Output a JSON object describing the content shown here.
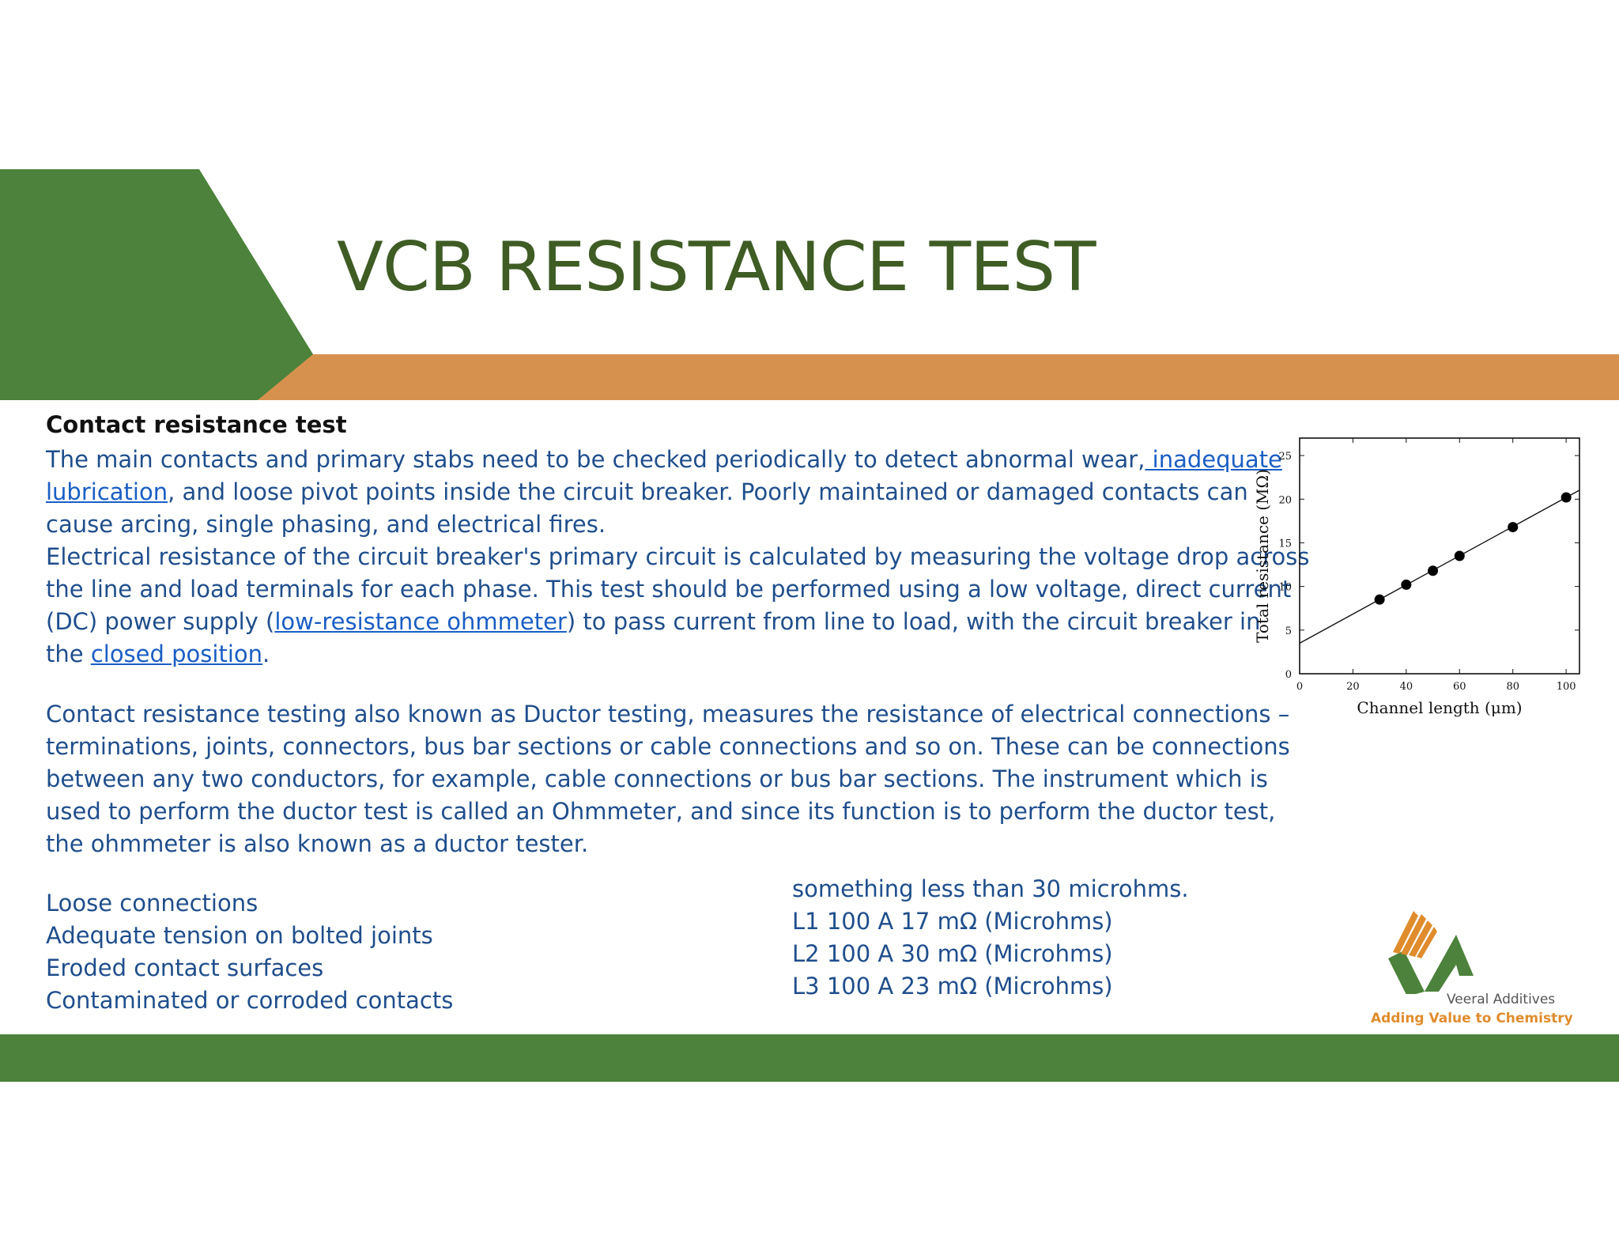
{
  "slide": {
    "title": "VCB RESISTANCE TEST"
  },
  "section1": {
    "heading": "Contact resistance test",
    "lines": [
      [
        "The main contacts and primary stabs need to be checked periodically to detect abnormal wear,",
        " inadequate"
      ],
      [
        "lubrication",
        ", and loose pivot points inside the circuit breaker. Poorly maintained or damaged contacts can"
      ],
      [
        "cause arcing, single phasing, and electrical fires."
      ],
      [
        "Electrical resistance of the circuit breaker's primary circuit is calculated by measuring the voltage drop across"
      ],
      [
        "the line and load terminals for each phase. This test should be performed using a low voltage, direct current"
      ],
      [
        "(DC) power supply (",
        "low-resistance ohmmeter",
        ") to pass current from line to load, with the circuit breaker in"
      ],
      [
        "the ",
        "closed position",
        "."
      ]
    ]
  },
  "section2": {
    "lines": [
      "Contact resistance testing also known as Ductor testing, measures the resistance of electrical connections –",
      "terminations, joints, connectors, bus bar sections or cable connections and so on. These can be connections",
      "between any two conductors, for example, cable connections or bus bar sections. The instrument which is",
      "used to perform the ductor test is called an Ohmmeter, and since its function is to perform the ductor test,",
      "the ohmmeter is also known as a ductor tester."
    ]
  },
  "checklist": [
    "Loose connections",
    "Adequate tension on bolted joints",
    "Eroded contact surfaces",
    "Contaminated or corroded contacts"
  ],
  "readings": [
    "something less than 30 microhms.",
    "L1 100 A 17 mΩ  (Microhms)",
    "L2 100 A 30 mΩ (Microhms)",
    "L3 100 A 23 mΩ (Microhms)"
  ],
  "chart_data": {
    "type": "scatter",
    "title": "",
    "xlabel": "Channel length (μm)",
    "ylabel": "Total resistance (MΩ)",
    "xlim": [
      0,
      105
    ],
    "ylim": [
      0,
      27
    ],
    "xticks": [
      0,
      20,
      40,
      60,
      80,
      100
    ],
    "yticks": [
      0,
      5,
      10,
      15,
      20,
      25
    ],
    "points": [
      {
        "x": 30,
        "y": 8.5
      },
      {
        "x": 40,
        "y": 10.2
      },
      {
        "x": 50,
        "y": 11.8
      },
      {
        "x": 60,
        "y": 13.5
      },
      {
        "x": 80,
        "y": 16.8
      },
      {
        "x": 100,
        "y": 20.2
      }
    ],
    "fit_line": {
      "intercept": 3.5,
      "slope": 0.167
    },
    "grid": false
  },
  "logo": {
    "name": "Veeral Additives",
    "tagline": "Adding Value to Chemistry"
  },
  "colors": {
    "green": "#4c823b",
    "orange": "#d7914e",
    "title": "#3e5c24",
    "text": "#1f4e8c",
    "link": "#1a5ec4"
  }
}
